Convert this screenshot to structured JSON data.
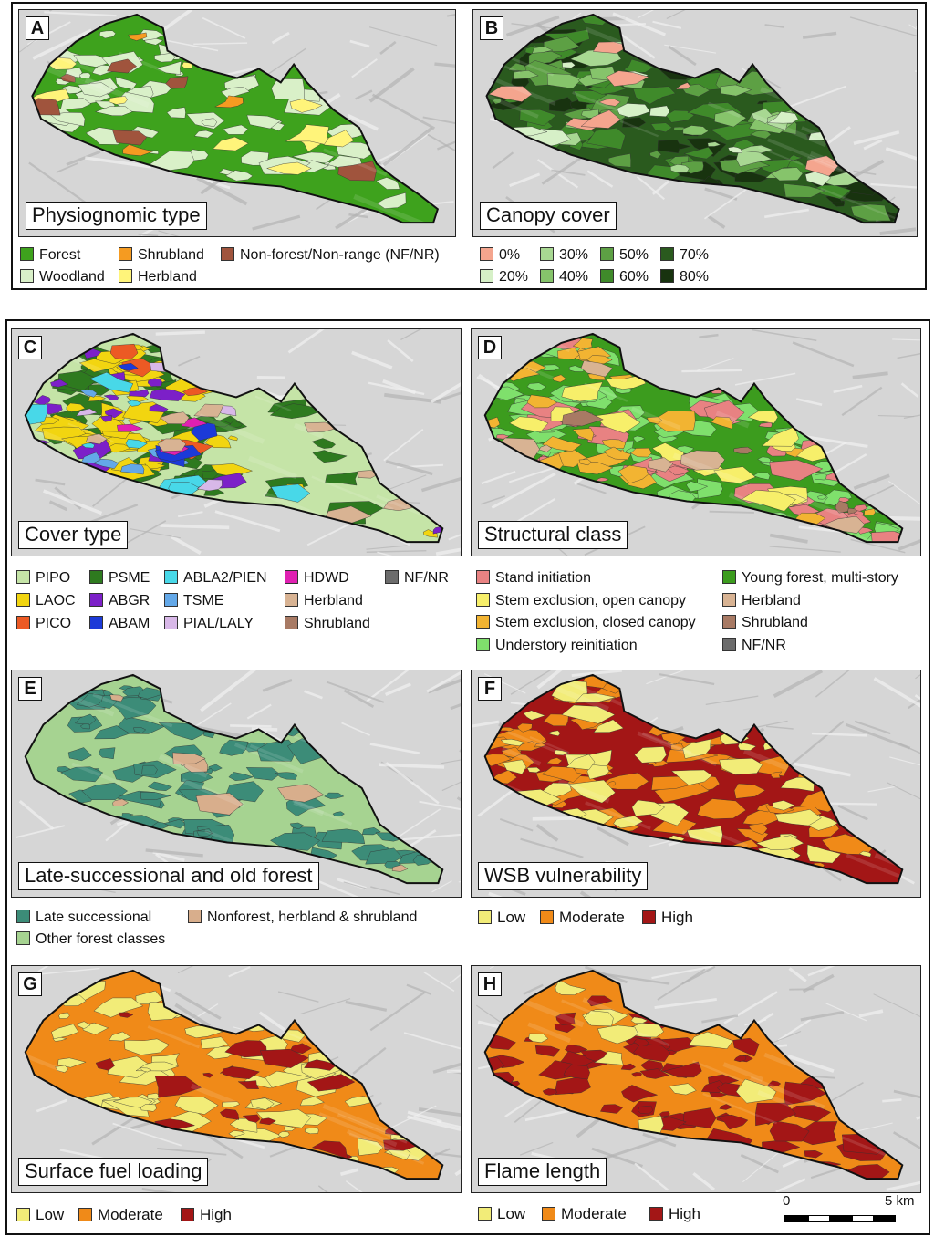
{
  "colors": {
    "terrain": "#d6d6d6",
    "forest": "#3ea21d",
    "woodland": "#d9f0c8",
    "shrubland": "#f59b21",
    "herbland": "#fff47a",
    "nfnr": "#a0543d",
    "cc0": "#f4a58e",
    "cc20": "#d6f0c7",
    "cc30": "#a8d892",
    "cc40": "#86c46b",
    "cc50": "#5da044",
    "cc60": "#3f8a2a",
    "cc70": "#2a5a1e",
    "cc80": "#18330f",
    "pipo": "#c5e4a7",
    "psme": "#2e7a1f",
    "abla2": "#48d8e8",
    "hdwd": "#e020b2",
    "nf": "#6c6c6c",
    "laoc": "#f2d510",
    "abgr": "#7c20c8",
    "tsme": "#63a8e8",
    "herb": "#d8b393",
    "pico": "#ec5a24",
    "abam": "#1c3ad8",
    "pial": "#d8b8e8",
    "shrub": "#a87a64",
    "si": "#e88282",
    "seo": "#f7ef6a",
    "sec": "#f2b432",
    "ur": "#7fe06c",
    "yf": "#3c9c1e",
    "late": "#3c8c78",
    "other": "#a6d391",
    "nonforest": "#d8ae8c",
    "low": "#f2ec78",
    "moderate": "#f08a18",
    "high": "#a31616"
  },
  "panels": [
    {
      "letter": "A",
      "title": "Physiognomic type"
    },
    {
      "letter": "B",
      "title": "Canopy cover"
    },
    {
      "letter": "C",
      "title": "Cover type"
    },
    {
      "letter": "D",
      "title": "Structural class"
    },
    {
      "letter": "E",
      "title": "Late-successional and old forest"
    },
    {
      "letter": "F",
      "title": "WSB vulnerability"
    },
    {
      "letter": "G",
      "title": "Surface fuel loading"
    },
    {
      "letter": "H",
      "title": "Flame length"
    }
  ],
  "legends": {
    "a": [
      "Forest",
      "Shrubland",
      "Non-forest/Non-range (NF/NR)",
      "Woodland",
      "Herbland"
    ],
    "b": [
      "0%",
      "30%",
      "50%",
      "70%",
      "20%",
      "40%",
      "60%",
      "80%"
    ],
    "c": [
      "PIPO",
      "PSME",
      "ABLA2/PIEN",
      "HDWD",
      "NF/NR",
      "LAOC",
      "ABGR",
      "TSME",
      "Herbland",
      "PICO",
      "ABAM",
      "PIAL/LALY",
      "Shrubland"
    ],
    "d": [
      "Stand initiation",
      "Young forest, multi-story",
      "Stem exclusion, open canopy",
      "Herbland",
      "Stem exclusion, closed canopy",
      "Shrubland",
      "Understory reinitiation",
      "NF/NR"
    ],
    "e": [
      "Late successional",
      "Nonforest, herbland & shrubland",
      "Other forest classes"
    ],
    "f": [
      "Low",
      "Moderate",
      "High"
    ],
    "g": [
      "Low",
      "Moderate",
      "High"
    ],
    "h": [
      "Low",
      "Moderate",
      "High"
    ]
  },
  "scale": {
    "start": "0",
    "end": "5 km"
  }
}
